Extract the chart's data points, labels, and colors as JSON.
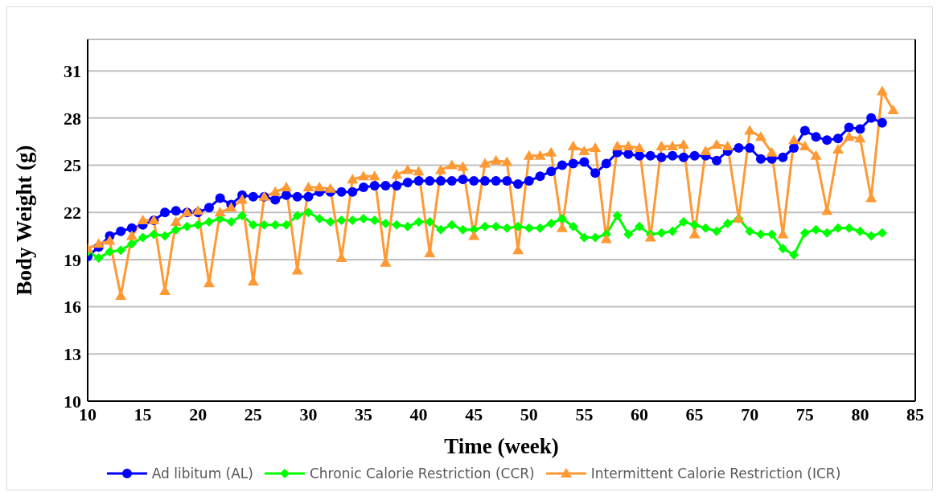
{
  "chart_data": {
    "type": "line",
    "xlabel": "Time (week)",
    "ylabel": "Body Weight (g)",
    "xlim": [
      10,
      85
    ],
    "xticks": [
      10,
      15,
      20,
      25,
      30,
      35,
      40,
      45,
      50,
      55,
      60,
      65,
      70,
      75,
      80,
      85
    ],
    "ylim": [
      10,
      33
    ],
    "yticks": [
      10,
      13,
      16,
      19,
      22,
      25,
      28,
      31
    ],
    "grid": "y",
    "legend": "bottom",
    "series": [
      {
        "name": "Ad libitum (AL)",
        "color": "#0000ff",
        "marker": "circle",
        "x": [
          10,
          11,
          12,
          13,
          14,
          15,
          16,
          17,
          18,
          19,
          20,
          21,
          22,
          23,
          24,
          25,
          26,
          27,
          28,
          29,
          30,
          31,
          32,
          33,
          34,
          35,
          36,
          37,
          38,
          39,
          40,
          41,
          42,
          43,
          44,
          45,
          46,
          47,
          48,
          49,
          50,
          51,
          52,
          53,
          54,
          55,
          56,
          57,
          58,
          59,
          60,
          61,
          62,
          63,
          64,
          65,
          66,
          67,
          68,
          69,
          70,
          71,
          72,
          73,
          74,
          75,
          76,
          77,
          78,
          79,
          80,
          81,
          82
        ],
        "values": [
          19.2,
          19.8,
          20.5,
          20.8,
          21.0,
          21.2,
          21.5,
          22.0,
          22.1,
          22.0,
          22.0,
          22.3,
          22.9,
          22.5,
          23.1,
          23.0,
          23.0,
          22.8,
          23.1,
          23.0,
          23.0,
          23.3,
          23.3,
          23.3,
          23.3,
          23.6,
          23.7,
          23.7,
          23.7,
          23.9,
          24.0,
          24.0,
          24.0,
          24.0,
          24.1,
          24.0,
          24.0,
          24.0,
          24.0,
          23.8,
          24.0,
          24.3,
          24.6,
          25.0,
          25.1,
          25.2,
          24.5,
          25.1,
          25.8,
          25.7,
          25.6,
          25.6,
          25.5,
          25.6,
          25.5,
          25.6,
          25.6,
          25.3,
          25.9,
          26.1,
          26.1,
          25.4,
          25.4,
          25.5,
          26.1,
          27.2,
          26.8,
          26.6,
          26.7,
          27.4,
          27.3,
          28.0,
          27.7
        ]
      },
      {
        "name": "Chronic Calorie Restriction (CCR)",
        "color": "#00ff00",
        "marker": "diamond",
        "x": [
          10,
          11,
          12,
          13,
          14,
          15,
          16,
          17,
          18,
          19,
          20,
          21,
          22,
          23,
          24,
          25,
          26,
          27,
          28,
          29,
          30,
          31,
          32,
          33,
          34,
          35,
          36,
          37,
          38,
          39,
          40,
          41,
          42,
          43,
          44,
          45,
          46,
          47,
          48,
          49,
          50,
          51,
          52,
          53,
          54,
          55,
          56,
          57,
          58,
          59,
          60,
          61,
          62,
          63,
          64,
          65,
          66,
          67,
          68,
          69,
          70,
          71,
          72,
          73,
          74,
          75,
          76,
          77,
          78,
          79,
          80,
          81,
          82
        ],
        "values": [
          19.5,
          19.1,
          19.5,
          19.6,
          20.0,
          20.4,
          20.6,
          20.5,
          20.9,
          21.1,
          21.2,
          21.4,
          21.6,
          21.4,
          21.8,
          21.2,
          21.2,
          21.2,
          21.2,
          21.8,
          22.0,
          21.6,
          21.4,
          21.5,
          21.5,
          21.6,
          21.5,
          21.3,
          21.2,
          21.1,
          21.4,
          21.4,
          20.9,
          21.2,
          20.9,
          20.9,
          21.1,
          21.1,
          21.0,
          21.1,
          21.0,
          21.0,
          21.3,
          21.6,
          21.1,
          20.4,
          20.4,
          20.6,
          21.8,
          20.6,
          21.1,
          20.6,
          20.7,
          20.8,
          21.4,
          21.2,
          21.0,
          20.8,
          21.3,
          21.6,
          20.8,
          20.6,
          20.6,
          19.7,
          19.3,
          20.7,
          20.9,
          20.7,
          21.0,
          21.0,
          20.8,
          20.5,
          20.7
        ]
      },
      {
        "name": "Intermittent Calorie Restriction (ICR)",
        "color": "#ff9933",
        "marker": "triangle",
        "x": [
          10,
          11,
          12,
          13,
          14,
          15,
          16,
          17,
          18,
          19,
          20,
          21,
          22,
          23,
          24,
          25,
          26,
          27,
          28,
          29,
          30,
          31,
          32,
          33,
          34,
          35,
          36,
          37,
          38,
          39,
          40,
          41,
          42,
          43,
          44,
          45,
          46,
          47,
          48,
          49,
          50,
          51,
          52,
          53,
          54,
          55,
          56,
          57,
          58,
          59,
          60,
          61,
          62,
          63,
          64,
          65,
          66,
          67,
          68,
          69,
          70,
          71,
          72,
          73,
          74,
          75,
          76,
          77,
          78,
          79,
          80,
          81,
          82,
          83
        ],
        "values": [
          19.7,
          20.0,
          20.2,
          16.7,
          20.5,
          21.5,
          21.5,
          17.0,
          21.4,
          22.0,
          22.1,
          17.5,
          22.0,
          22.3,
          22.8,
          17.6,
          23.0,
          23.3,
          23.6,
          18.3,
          23.6,
          23.6,
          23.5,
          19.1,
          24.1,
          24.3,
          24.3,
          18.8,
          24.4,
          24.7,
          24.6,
          19.4,
          24.7,
          25.0,
          24.9,
          20.5,
          25.1,
          25.3,
          25.2,
          19.6,
          25.6,
          25.6,
          25.8,
          21.0,
          26.2,
          25.9,
          26.1,
          20.3,
          26.2,
          26.2,
          26.1,
          20.4,
          26.2,
          26.2,
          26.3,
          20.6,
          25.9,
          26.3,
          26.2,
          21.6,
          27.2,
          26.8,
          25.8,
          20.6,
          26.6,
          26.2,
          25.6,
          22.1,
          26.0,
          26.8,
          26.7,
          22.9,
          29.7,
          28.5
        ]
      }
    ]
  }
}
